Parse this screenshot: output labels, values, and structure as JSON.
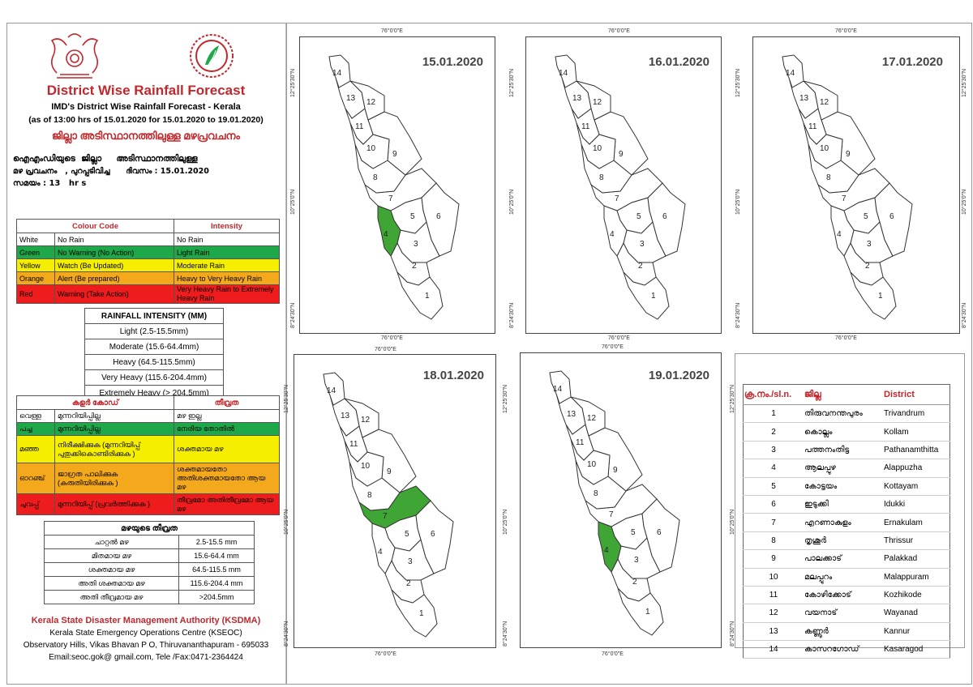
{
  "header": {
    "title": "District Wise Rainfall Forecast",
    "subtitle": "IMD's District Wise Rainfall Forecast - Kerala",
    "as_of": "(as of 13:00 hrs of 15.01.2020  for 15.01.2020  to 19.01.2020)",
    "mal_title": "ജില്ലാ അടിസ്ഥാനത്തിലുള്ള മഴപ്രവചനം",
    "mal_line1": "ഐഎംഡിയുടെ  ജില്ലാ     അടിസ്ഥാനത്തിലുള്ള",
    "mal_line2": "മഴ പ്രവചനം   , പുറപ്പടിവിച്ച      ദിവസം : 15.01.2020",
    "mal_line3": "സമയം : 13   hr s"
  },
  "colour_code": {
    "headers": [
      "Colour Code",
      "Intensity"
    ],
    "rows": [
      {
        "name": "White",
        "action": "No Rain",
        "intensity": "No Rain",
        "color": "#ffffff"
      },
      {
        "name": "Green",
        "action": "No Warning (No Action)",
        "intensity": "Light Rain",
        "color": "#1fa84a"
      },
      {
        "name": "Yellow",
        "action": "Watch (Be Updated)",
        "intensity": "Moderate Rain",
        "color": "#f6ee00"
      },
      {
        "name": "Orange",
        "action": "Alert (Be prepared)",
        "intensity": "Heavy to Very Heavy Rain",
        "color": "#f4a81c"
      },
      {
        "name": "Red",
        "action": "Warning (Take Action)",
        "intensity": "Very Heavy Rain to Extremely Heavy Rain",
        "color": "#ee1c1c"
      }
    ]
  },
  "rainfall_intensity": {
    "title": "RAINFALL INTENSITY (MM)",
    "rows": [
      "Light (2.5-15.5mm)",
      "Moderate (15.6-64.4mm)",
      "Heavy (64.5-115.5mm)",
      "Very Heavy (115.6-204.4mm)",
      "Extremely Heavy (> 204.5mm)"
    ]
  },
  "colour_code_mal": {
    "headers": [
      "കളർ കോഡ്",
      "തീവ്രത"
    ],
    "rows": [
      {
        "name": "വെള്ള",
        "action": "മുന്നറിയിപ്പില്ല",
        "intensity": "മഴ ഇല്ല"
      },
      {
        "name": "പച്ച",
        "action": "മുന്നറിയിപ്പില്ല",
        "intensity": "നേരിയ തോതിൽ"
      },
      {
        "name": "മഞ്ഞ",
        "action": "നിരീക്ഷിക്കുക (മുന്നറിയിപ്പ് പുതുക്കികൊണ്ടിരിക്കുക )",
        "intensity": "ശക്തമായ മഴ"
      },
      {
        "name": "ഓറഞ്ച്",
        "action": "ജാഗ്രത പാലിക്കുക (കരുതിയിരിക്കുക )",
        "intensity": "ശക്തമായതോ അതിശക്തമായതോ ആയ മഴ"
      },
      {
        "name": "ചുവപ്പ്",
        "action": "മുന്നറിയിപ്പ് (പ്രവർത്തിക്കുക )",
        "intensity": "തീവ്രമോ അതിതീവ്രമോ ആയ മഴ"
      }
    ]
  },
  "intensity_mal": {
    "title": "മഴയുടെ തീവ്രത",
    "rows": [
      {
        "label": "ചാറ്റൽ മഴ",
        "value": "2.5-15.5 mm"
      },
      {
        "label": "മിതമായ മഴ",
        "value": "15.6-64.4 mm"
      },
      {
        "label": "ശക്തമായ മഴ",
        "value": "64.5-115.5 mm"
      },
      {
        "label": "അതി ശക്തമായ മഴ",
        "value": "115.6-204.4 mm"
      },
      {
        "label": "അതി തീവ്രമായ മഴ",
        "value": ">204.5mm"
      }
    ]
  },
  "footer": {
    "org": "Kerala State Disaster Management Authority (KSDMA)",
    "centre": "Kerala State Emergency Operations Centre (KSEOC)",
    "address": "Observatory Hills, Vikas Bhavan P O, Thiruvananthapuram - 695033",
    "contact": "Email:seoc.gok@ gmail.com, Tele /Fax:0471-2364424"
  },
  "map_coords": {
    "lon_label": "76°0'0\"E",
    "lat_top": "12°25'30\"N",
    "lat_mid": "10°25'0\"N",
    "lat_bot": "8°24'30\"N"
  },
  "maps": [
    {
      "date": "15.01.2020",
      "highlight": {
        "4": "#3fa535"
      }
    },
    {
      "date": "16.01.2020",
      "highlight": {}
    },
    {
      "date": "17.01.2020",
      "highlight": {}
    },
    {
      "date": "18.01.2020",
      "highlight": {
        "7": "#3fa535"
      }
    },
    {
      "date": "19.01.2020",
      "highlight": {
        "4": "#3fa535"
      }
    }
  ],
  "district_table": {
    "headers": [
      "ക്ര.നം./sl.n.",
      "ജില്ല",
      "District"
    ],
    "rows": [
      {
        "no": "1",
        "mal": "തിരുവനന്തപുരം",
        "eng": "Trivandrum"
      },
      {
        "no": "2",
        "mal": "കൊല്ലം",
        "eng": "Kollam"
      },
      {
        "no": "3",
        "mal": "പത്തനംതിട്ട",
        "eng": "Pathanamthitta"
      },
      {
        "no": "4",
        "mal": "ആലപ്പുഴ",
        "eng": "Alappuzha"
      },
      {
        "no": "5",
        "mal": "കോട്ടയം",
        "eng": "Kottayam"
      },
      {
        "no": "6",
        "mal": "ഇടുക്കി",
        "eng": "Idukki"
      },
      {
        "no": "7",
        "mal": "എറണാകുളം",
        "eng": "Ernakulam"
      },
      {
        "no": "8",
        "mal": "തൃശൂർ",
        "eng": "Thrissur"
      },
      {
        "no": "9",
        "mal": "പാലക്കാട്",
        "eng": "Palakkad"
      },
      {
        "no": "10",
        "mal": "മലപ്പുറം",
        "eng": "Malappuram"
      },
      {
        "no": "11",
        "mal": "കോഴിക്കോട്",
        "eng": "Kozhikode"
      },
      {
        "no": "12",
        "mal": "വയനാട്",
        "eng": "Wayanad"
      },
      {
        "no": "13",
        "mal": "കണ്ണൂർ",
        "eng": "Kannur"
      },
      {
        "no": "14",
        "mal": "കാസറഗോഡ്",
        "eng": "Kasaragod"
      }
    ]
  }
}
